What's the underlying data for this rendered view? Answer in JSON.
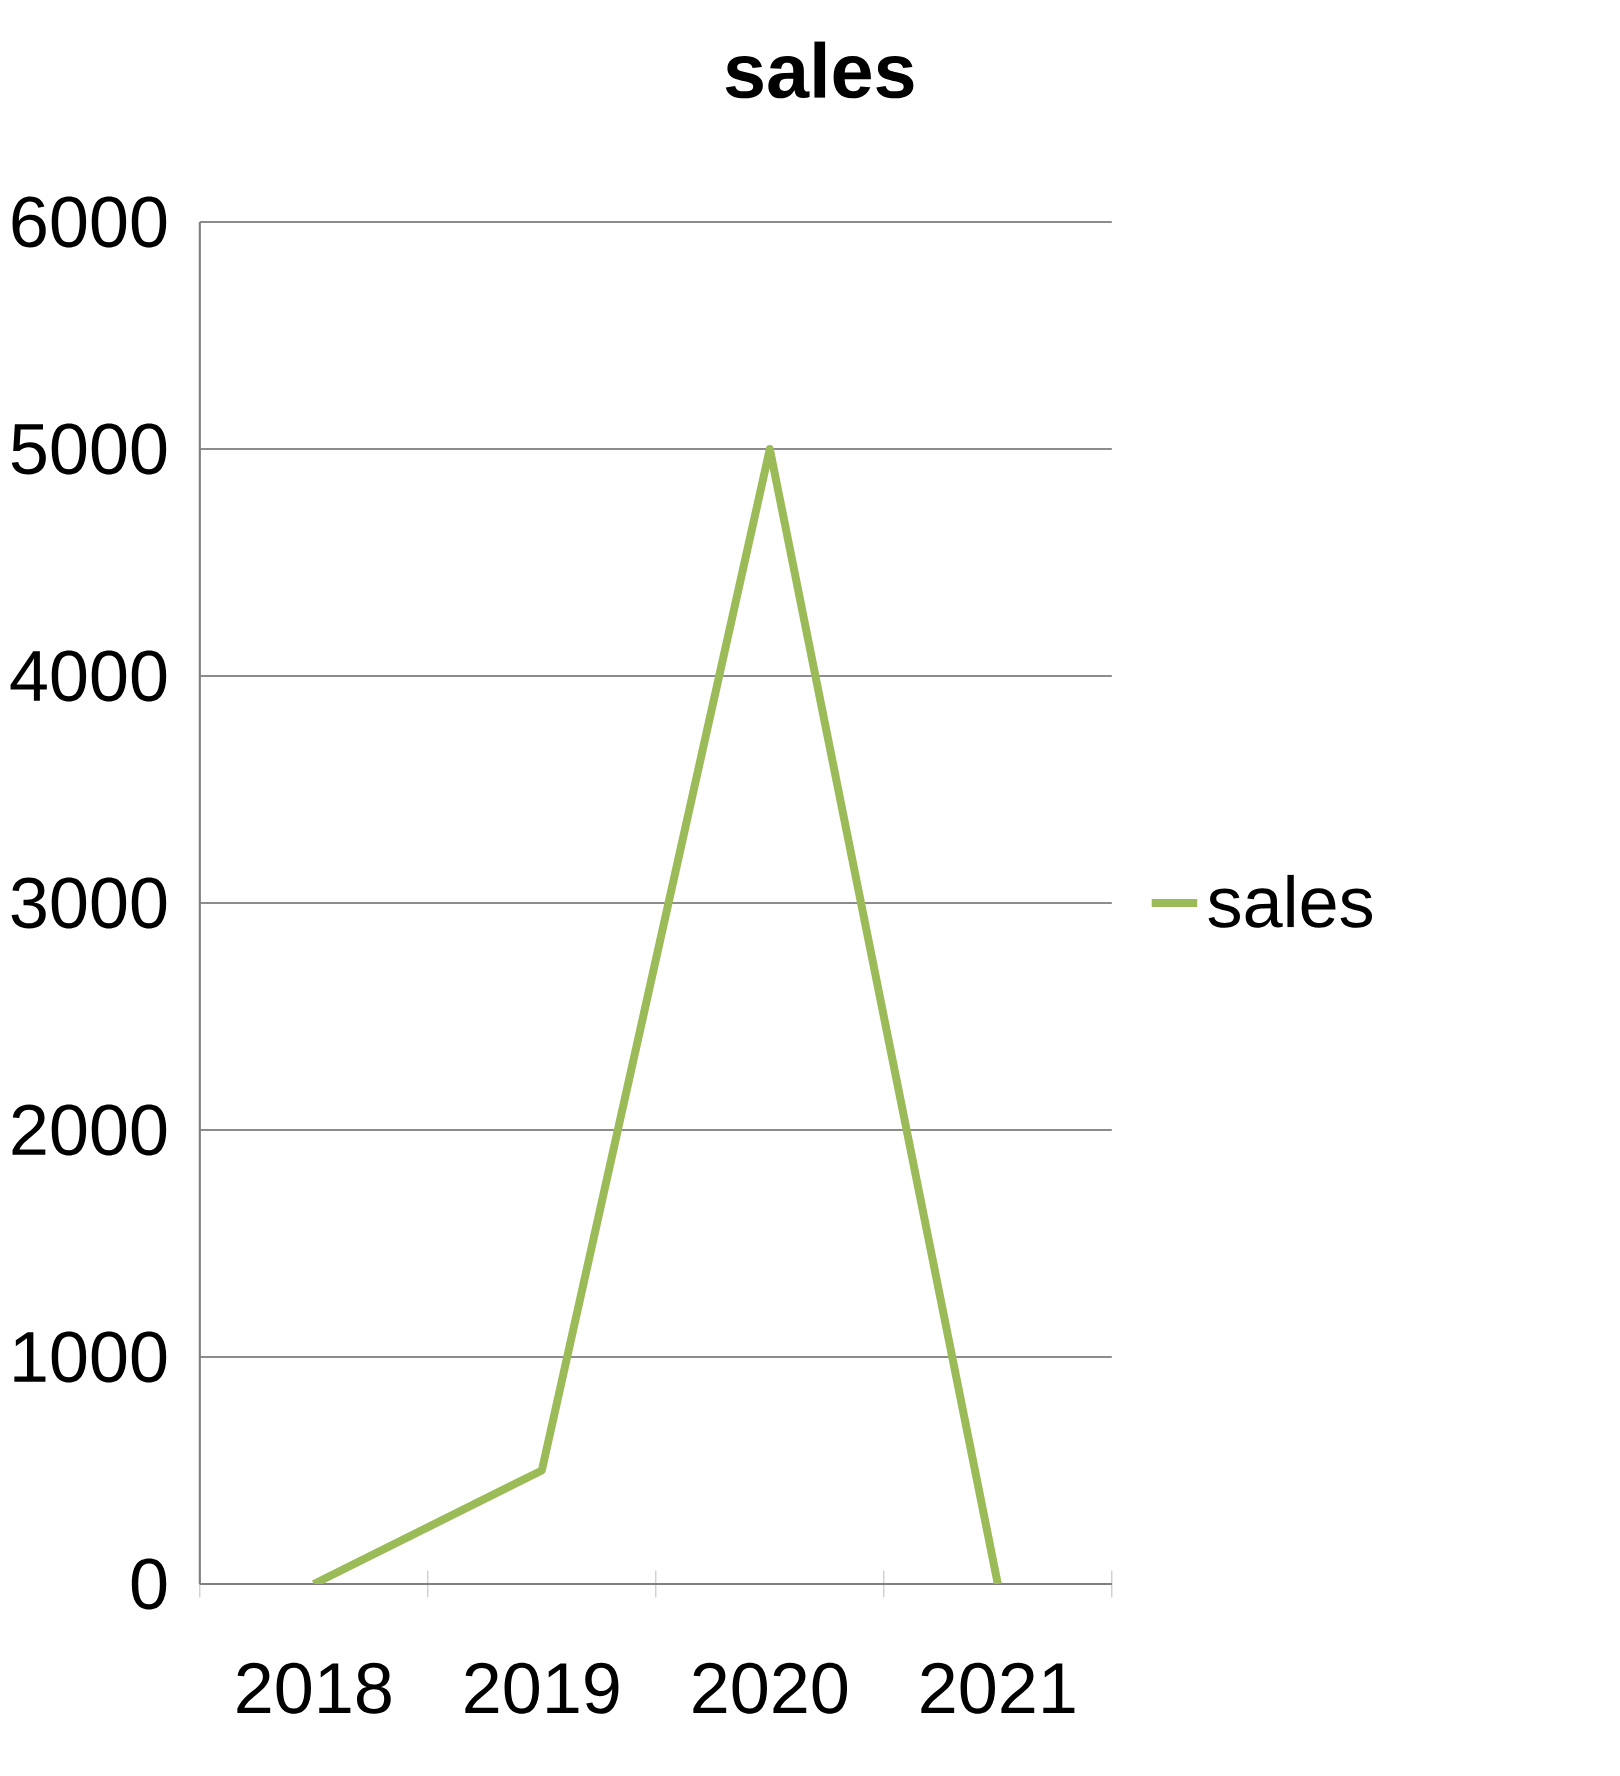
{
  "chart_data": {
    "type": "line",
    "title": "sales",
    "categories": [
      "2018",
      "2019",
      "2020",
      "2021"
    ],
    "series": [
      {
        "name": "sales",
        "color": "#9bbb59",
        "values": [
          0,
          500,
          5000,
          0
        ]
      }
    ],
    "ylim": [
      0,
      6000
    ],
    "yticks": [
      0,
      1000,
      2000,
      3000,
      4000,
      5000,
      6000
    ],
    "grid": "y",
    "legend": "right",
    "marker": "none",
    "line_style": "solid"
  }
}
